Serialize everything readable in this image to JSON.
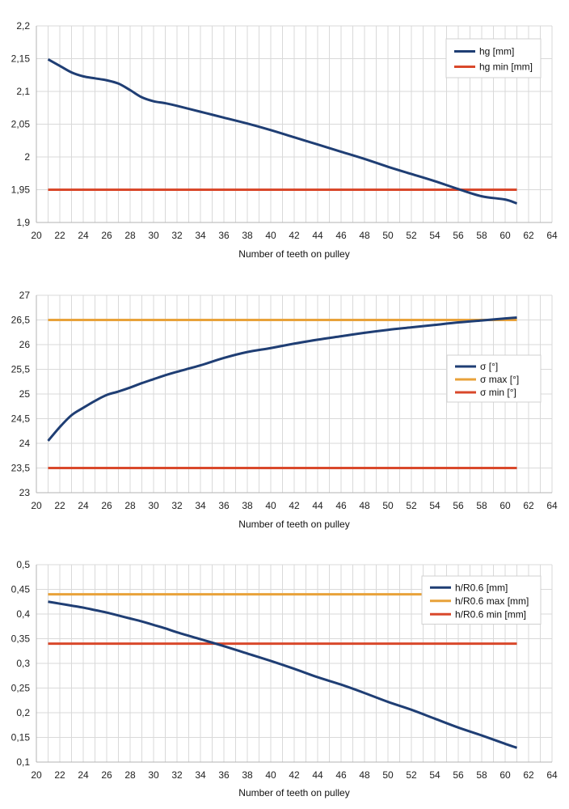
{
  "chart_data": [
    {
      "type": "line",
      "title": "",
      "xlabel": "Number of teeth on pulley",
      "ylabel": "",
      "xlim": [
        20,
        64
      ],
      "ylim": [
        1.9,
        2.2
      ],
      "xticks": [
        20,
        22,
        24,
        26,
        28,
        30,
        32,
        34,
        36,
        38,
        40,
        42,
        44,
        46,
        48,
        50,
        52,
        54,
        56,
        58,
        60,
        62,
        64
      ],
      "xtick_labels": [
        "20",
        "22",
        "24",
        "26",
        "28",
        "30",
        "32",
        "34",
        "36",
        "38",
        "40",
        "42",
        "44",
        "46",
        "48",
        "50",
        "52",
        "54",
        "56",
        "58",
        "60",
        "62",
        "64"
      ],
      "yticks": [
        1.9,
        1.95,
        2,
        2.05,
        2.1,
        2.15,
        2.2
      ],
      "ytick_labels": [
        "1,9",
        "1,95",
        "2",
        "2,05",
        "2,1",
        "2,15",
        "2,2"
      ],
      "legend_position": "top-right",
      "series": [
        {
          "name": "hg [mm]",
          "color": "#1f3e74",
          "x": [
            21,
            22,
            23,
            24,
            25,
            26,
            27,
            28,
            29,
            30,
            31,
            32,
            34,
            36,
            38,
            40,
            42,
            44,
            46,
            48,
            50,
            52,
            54,
            56,
            58,
            60,
            61
          ],
          "values": [
            2.149,
            2.139,
            2.129,
            2.123,
            2.12,
            2.117,
            2.112,
            2.102,
            2.091,
            2.085,
            2.082,
            2.078,
            2.069,
            2.06,
            2.051,
            2.041,
            2.03,
            2.019,
            2.008,
            1.997,
            1.985,
            1.974,
            1.963,
            1.951,
            1.94,
            1.935,
            1.929
          ]
        },
        {
          "name": "hg min [mm]",
          "color": "#d9482b",
          "x": [
            21,
            61
          ],
          "values": [
            1.95,
            1.95
          ]
        }
      ]
    },
    {
      "type": "line",
      "title": "",
      "xlabel": "Number of teeth on pulley",
      "ylabel": "",
      "xlim": [
        20,
        64
      ],
      "ylim": [
        23,
        27
      ],
      "xticks": [
        20,
        22,
        24,
        26,
        28,
        30,
        32,
        34,
        36,
        38,
        40,
        42,
        44,
        46,
        48,
        50,
        52,
        54,
        56,
        58,
        60,
        62,
        64
      ],
      "xtick_labels": [
        "20",
        "22",
        "24",
        "26",
        "28",
        "30",
        "32",
        "34",
        "36",
        "38",
        "40",
        "42",
        "44",
        "46",
        "48",
        "50",
        "52",
        "54",
        "56",
        "58",
        "60",
        "62",
        "64"
      ],
      "yticks": [
        23,
        23.5,
        24,
        24.5,
        25,
        25.5,
        26,
        26.5,
        27
      ],
      "ytick_labels": [
        "23",
        "23,5",
        "24",
        "24,5",
        "25",
        "25,5",
        "26",
        "26,5",
        "27"
      ],
      "legend_position": "center-right",
      "series": [
        {
          "name": "σ [°]",
          "color": "#1f3e74",
          "x": [
            21,
            22,
            23,
            24,
            25,
            26,
            27,
            28,
            29,
            30,
            31,
            32,
            34,
            36,
            38,
            40,
            42,
            44,
            46,
            48,
            50,
            52,
            54,
            56,
            58,
            60,
            61
          ],
          "values": [
            24.05,
            24.33,
            24.57,
            24.72,
            24.86,
            24.98,
            25.05,
            25.13,
            25.22,
            25.3,
            25.38,
            25.45,
            25.58,
            25.73,
            25.85,
            25.93,
            26.02,
            26.1,
            26.17,
            26.24,
            26.3,
            26.35,
            26.4,
            26.45,
            26.49,
            26.53,
            26.55
          ]
        },
        {
          "name": "σ max [°]",
          "color": "#e8a23a",
          "x": [
            21,
            61
          ],
          "values": [
            26.5,
            26.5
          ]
        },
        {
          "name": "σ min [°]",
          "color": "#d9482b",
          "x": [
            21,
            61
          ],
          "values": [
            23.5,
            23.5
          ]
        }
      ]
    },
    {
      "type": "line",
      "title": "",
      "xlabel": "Number of teeth on pulley",
      "ylabel": "",
      "xlim": [
        20,
        64
      ],
      "ylim": [
        0.1,
        0.5
      ],
      "xticks": [
        20,
        22,
        24,
        26,
        28,
        30,
        32,
        34,
        36,
        38,
        40,
        42,
        44,
        46,
        48,
        50,
        52,
        54,
        56,
        58,
        60,
        62,
        64
      ],
      "xtick_labels": [
        "20",
        "22",
        "24",
        "26",
        "28",
        "30",
        "32",
        "34",
        "36",
        "38",
        "40",
        "42",
        "44",
        "46",
        "48",
        "50",
        "52",
        "54",
        "56",
        "58",
        "60",
        "62",
        "64"
      ],
      "yticks": [
        0.1,
        0.15,
        0.2,
        0.25,
        0.3,
        0.35,
        0.4,
        0.45,
        0.5
      ],
      "ytick_labels": [
        "0,1",
        "0,15",
        "0,2",
        "0,25",
        "0,3",
        "0,35",
        "0,4",
        "0,45",
        "0,5"
      ],
      "legend_position": "top-right",
      "series": [
        {
          "name": "h/R0.6 [mm]",
          "color": "#1f3e74",
          "x": [
            21,
            22,
            23,
            24,
            25,
            26,
            27,
            28,
            29,
            30,
            31,
            32,
            34,
            36,
            38,
            40,
            42,
            44,
            46,
            48,
            50,
            52,
            54,
            56,
            58,
            60,
            61
          ],
          "values": [
            0.425,
            0.421,
            0.417,
            0.413,
            0.408,
            0.403,
            0.397,
            0.391,
            0.385,
            0.378,
            0.371,
            0.363,
            0.349,
            0.335,
            0.32,
            0.305,
            0.289,
            0.272,
            0.257,
            0.24,
            0.222,
            0.206,
            0.188,
            0.17,
            0.154,
            0.137,
            0.129
          ]
        },
        {
          "name": "h/R0.6 max [mm]",
          "color": "#e8a23a",
          "x": [
            21,
            61
          ],
          "values": [
            0.44,
            0.44
          ]
        },
        {
          "name": "h/R0.6 min [mm]",
          "color": "#d9482b",
          "x": [
            21,
            61
          ],
          "values": [
            0.34,
            0.34
          ]
        }
      ]
    }
  ]
}
